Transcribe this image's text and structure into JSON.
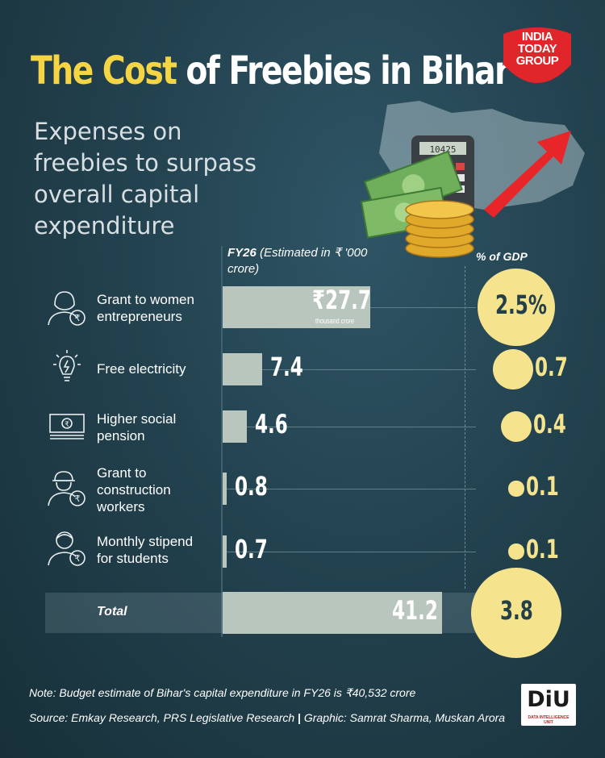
{
  "title": {
    "part1": "The Cost",
    "part2": " of Freebies in Bihar"
  },
  "subtitle": "Expenses on freebies to surpass overall capital expenditure",
  "logo": {
    "line1": "INDIA",
    "line2": "TODAY",
    "line3": "GROUP",
    "color": "#e0262a"
  },
  "column_headers": {
    "fy": "FY26",
    "fy_rest": " (Estimated in ₹ '000 crore)",
    "gdp": "% of GDP"
  },
  "bar_unit_label": "thousand crore",
  "colors": {
    "accent_yellow": "#f6d545",
    "circle_fill": "#f6e38d",
    "bar_fill": "#b9c6bd",
    "background": "#23424f"
  },
  "chart_data": {
    "type": "bar",
    "title": "The Cost of Freebies in Bihar",
    "categories": [
      "Grant to women entrepreneurs",
      "Free electricity",
      "Higher social pension",
      "Grant to construction workers",
      "Monthly stipend for students"
    ],
    "series": [
      {
        "name": "FY26",
        "values": [
          27.7,
          7.4,
          4.6,
          0.8,
          0.7
        ]
      },
      {
        "name": "% of GDP",
        "values": [
          2.5,
          0.7,
          0.4,
          0.1,
          0.1
        ]
      }
    ],
    "bar_labels": [
      "₹27.7",
      "7.4",
      "4.6",
      "0.8",
      "0.7"
    ],
    "gdp_labels": [
      "2.5%",
      "0.7",
      "0.4",
      "0.1",
      "0.1"
    ],
    "icons": [
      "woman-rupee-icon",
      "lightbulb-icon",
      "banknote-icon",
      "worker-rupee-icon",
      "student-rupee-icon"
    ],
    "total": {
      "label": "Total",
      "value": 41.2,
      "value_label": "41.2",
      "gdp": 3.8,
      "gdp_label": "3.8"
    },
    "ylim": [
      0,
      41.2
    ]
  },
  "note": "Note: Budget estimate of Bihar's capital expenditure in FY26 is ₹40,532 crore",
  "source": "Source: Emkay Research, PRS Legislative Research",
  "source_sep": "|",
  "credit": "Graphic: Samrat Sharma, Muskan Arora",
  "diu": {
    "main": "DiU",
    "sub": "DATA INTELLIGENCE UNIT"
  }
}
